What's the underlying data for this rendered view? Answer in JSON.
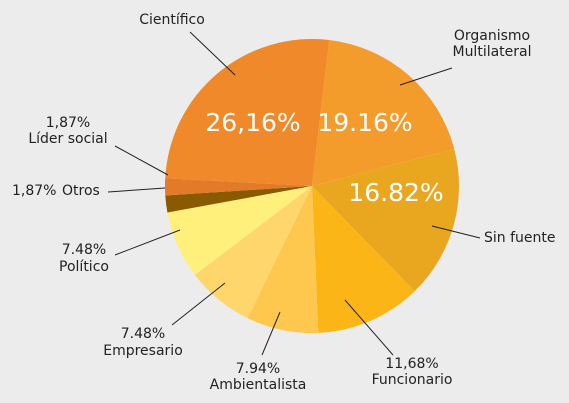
{
  "chart_data": {
    "type": "pie",
    "categories": [
      "Científico",
      "Organismo Multilateral",
      "Sin fuente",
      "Funcionario",
      "Ambientalista",
      "Empresario",
      "Político",
      "Otros",
      "Líder social"
    ],
    "values": [
      26.16,
      19.16,
      16.82,
      11.68,
      7.94,
      7.48,
      7.48,
      1.87,
      1.87
    ],
    "value_labels": [
      "26,16%",
      "19.16%",
      "16.82%",
      "11,68%",
      "7.94%",
      "7.48%",
      "7.48%",
      "1,87%",
      "1,87%"
    ],
    "colors": [
      "#f0892a",
      "#f39b2b",
      "#e9a71f",
      "#fcb517",
      "#fec84f",
      "#fed66c",
      "#fff07c",
      "#8a5a00",
      "#e27a27"
    ]
  }
}
